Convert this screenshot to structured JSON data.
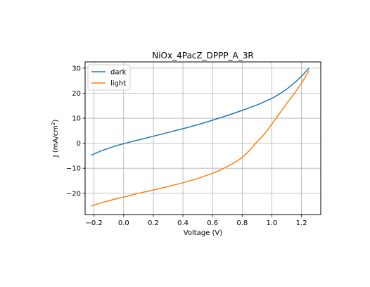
{
  "chart_data": {
    "type": "line",
    "title": "NiOx_4PacZ_DPPP_A_3R",
    "xlabel": "Voltage (V)",
    "ylabel_main": "J (mA/cm",
    "ylabel_sup": "2",
    "ylabel_end": ")",
    "xlim": [
      -0.26,
      1.33
    ],
    "ylim": [
      -28.5,
      32.5
    ],
    "grid": true,
    "legend_position": "upper-left",
    "x_ticks": [
      -0.2,
      0.0,
      0.2,
      0.4,
      0.6,
      0.8,
      1.0,
      1.2
    ],
    "x_tick_labels": [
      "−0.2",
      "0.0",
      "0.2",
      "0.4",
      "0.6",
      "0.8",
      "1.0",
      "1.2"
    ],
    "y_ticks": [
      -20,
      -10,
      0,
      10,
      20,
      30
    ],
    "y_tick_labels": [
      "−20",
      "−10",
      "0",
      "10",
      "20",
      "30"
    ],
    "series": [
      {
        "name": "dark",
        "color": "#1f77b4",
        "x": [
          -0.22,
          -0.15,
          -0.1,
          -0.05,
          0.0,
          0.05,
          0.1,
          0.2,
          0.3,
          0.4,
          0.5,
          0.6,
          0.7,
          0.8,
          0.9,
          1.0,
          1.05,
          1.1,
          1.15,
          1.2,
          1.25
        ],
        "y": [
          -4.8,
          -3.0,
          -2.0,
          -1.0,
          -0.2,
          0.6,
          1.3,
          2.8,
          4.3,
          5.8,
          7.4,
          9.2,
          11.1,
          13.1,
          15.3,
          17.9,
          19.6,
          21.6,
          24.0,
          26.7,
          30.0
        ]
      },
      {
        "name": "light",
        "color": "#ff7f0e",
        "x": [
          -0.22,
          -0.15,
          -0.1,
          -0.05,
          0.0,
          0.1,
          0.2,
          0.3,
          0.4,
          0.5,
          0.6,
          0.65,
          0.7,
          0.75,
          0.8,
          0.85,
          0.9,
          0.95,
          1.0,
          1.05,
          1.1,
          1.15,
          1.2,
          1.25
        ],
        "y": [
          -25.1,
          -23.8,
          -23.0,
          -22.2,
          -21.5,
          -20.0,
          -18.7,
          -17.3,
          -15.8,
          -14.1,
          -12.0,
          -10.8,
          -9.3,
          -7.7,
          -5.7,
          -2.8,
          0.6,
          3.6,
          7.7,
          11.7,
          15.9,
          19.7,
          24.0,
          29.0
        ]
      }
    ]
  }
}
